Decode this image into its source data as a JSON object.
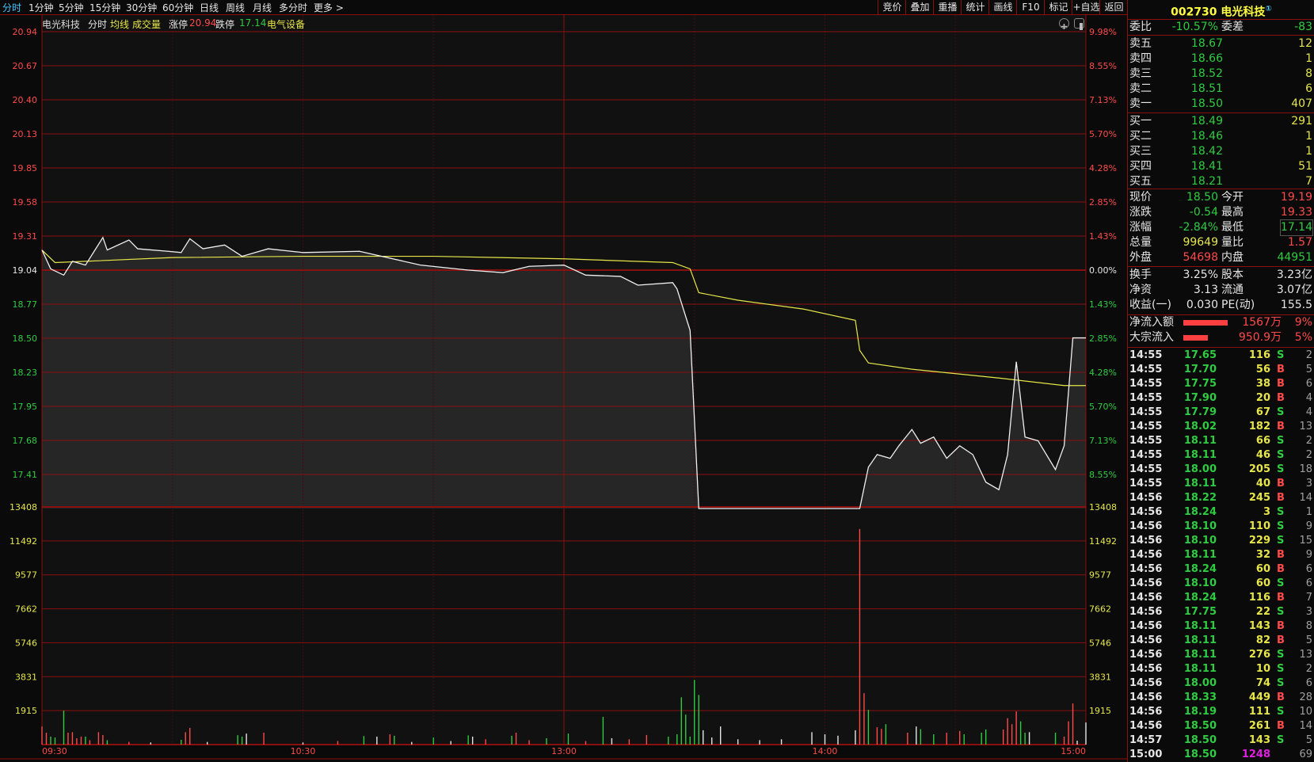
{
  "topbar": {
    "tabs": [
      "分时",
      "1分钟",
      "5分钟",
      "15分钟",
      "30分钟",
      "60分钟",
      "日线",
      "周线",
      "月线",
      "多分时",
      "更多 >"
    ],
    "active_tab": 0,
    "buttons": [
      "竞价",
      "叠加",
      "重播",
      "统计",
      "画线",
      "F10",
      "标记",
      "+自选",
      "返回"
    ]
  },
  "info_line": {
    "name": "电光科技",
    "mode": "分时",
    "avg_label": "均线",
    "vol_label": "成交量",
    "limit_up_label": "涨停",
    "limit_up": "20.94",
    "limit_down_label": "跌停",
    "limit_down": "17.14",
    "sector": "电气设备"
  },
  "chart_icons": [
    "zoom-in-icon",
    "panel-toggle-icon"
  ],
  "colors": {
    "up": "#ff4a4a",
    "down": "#2ecc40",
    "flat": "#e6e6e6",
    "avg": "#e6e64a",
    "grid": "#8a1010",
    "fill": "#262626"
  },
  "chart_data": {
    "type": "line",
    "prev_close": 19.04,
    "ylim": [
      17.14,
      20.94
    ],
    "price_ticks": [
      "20.94",
      "20.67",
      "20.40",
      "20.13",
      "19.85",
      "19.58",
      "19.31",
      "19.04",
      "18.77",
      "18.50",
      "18.23",
      "17.95",
      "17.68",
      "17.41"
    ],
    "pct_ticks": [
      "9.98%",
      "8.55%",
      "7.13%",
      "5.70%",
      "4.28%",
      "2.85%",
      "1.43%",
      "0.00%",
      "1.43%",
      "2.85%",
      "4.28%",
      "5.70%",
      "7.13%",
      "8.55%"
    ],
    "vol_ticks": [
      "13408",
      "11492",
      "9577",
      "7662",
      "5746",
      "3831",
      "1915"
    ],
    "vol_max": 13408,
    "time_labels": [
      "09:30",
      "10:30",
      "13:00",
      "14:00",
      "15:00"
    ],
    "price": [
      [
        "09:30",
        19.2
      ],
      [
        "09:32",
        19.05
      ],
      [
        "09:35",
        19.0
      ],
      [
        "09:37",
        19.11
      ],
      [
        "09:40",
        19.08
      ],
      [
        "09:42",
        19.19
      ],
      [
        "09:44",
        19.3
      ],
      [
        "09:45",
        19.2
      ],
      [
        "09:50",
        19.28
      ],
      [
        "09:52",
        19.21
      ],
      [
        "09:59",
        19.19
      ],
      [
        "10:02",
        19.18
      ],
      [
        "10:04",
        19.29
      ],
      [
        "10:07",
        19.21
      ],
      [
        "10:12",
        19.24
      ],
      [
        "10:16",
        19.15
      ],
      [
        "10:22",
        19.21
      ],
      [
        "10:30",
        19.18
      ],
      [
        "10:43",
        19.19
      ],
      [
        "10:57",
        19.08
      ],
      [
        "11:08",
        19.04
      ],
      [
        "11:16",
        19.02
      ],
      [
        "11:22",
        19.07
      ],
      [
        "13:00",
        19.08
      ],
      [
        "13:05",
        19.0
      ],
      [
        "13:13",
        18.99
      ],
      [
        "13:17",
        18.92
      ],
      [
        "13:25",
        18.94
      ],
      [
        "13:26",
        18.89
      ],
      [
        "13:29",
        18.56
      ],
      [
        "13:31",
        17.14
      ],
      [
        "14:08",
        17.14
      ],
      [
        "14:10",
        17.47
      ],
      [
        "14:12",
        17.57
      ],
      [
        "14:15",
        17.54
      ],
      [
        "14:17",
        17.64
      ],
      [
        "14:20",
        17.77
      ],
      [
        "14:22",
        17.66
      ],
      [
        "14:25",
        17.71
      ],
      [
        "14:28",
        17.54
      ],
      [
        "14:31",
        17.64
      ],
      [
        "14:34",
        17.57
      ],
      [
        "14:37",
        17.35
      ],
      [
        "14:40",
        17.29
      ],
      [
        "14:42",
        17.57
      ],
      [
        "14:44",
        18.31
      ],
      [
        "14:46",
        17.71
      ],
      [
        "14:49",
        17.68
      ],
      [
        "14:53",
        17.45
      ],
      [
        "14:55",
        17.64
      ],
      [
        "14:57",
        18.5
      ],
      [
        "15:00",
        18.5
      ]
    ],
    "avg": [
      [
        "09:30",
        19.2
      ],
      [
        "09:33",
        19.1
      ],
      [
        "09:40",
        19.11
      ],
      [
        "10:00",
        19.14
      ],
      [
        "10:30",
        19.15
      ],
      [
        "11:00",
        19.15
      ],
      [
        "13:00",
        19.13
      ],
      [
        "13:25",
        19.1
      ],
      [
        "13:29",
        19.05
      ],
      [
        "13:31",
        18.86
      ],
      [
        "13:40",
        18.8
      ],
      [
        "13:55",
        18.73
      ],
      [
        "14:07",
        18.64
      ],
      [
        "14:08",
        18.4
      ],
      [
        "14:10",
        18.3
      ],
      [
        "14:20",
        18.25
      ],
      [
        "14:40",
        18.18
      ],
      [
        "14:55",
        18.12
      ],
      [
        "15:00",
        18.12
      ]
    ],
    "volume": [
      [
        "09:30",
        1020,
        "up"
      ],
      [
        "09:31",
        670,
        "up"
      ],
      [
        "09:32",
        450,
        "down"
      ],
      [
        "09:33",
        400,
        "down"
      ],
      [
        "09:35",
        1915,
        "down"
      ],
      [
        "09:36",
        670,
        "up"
      ],
      [
        "09:37",
        700,
        "up"
      ],
      [
        "09:38",
        360,
        "up"
      ],
      [
        "09:39",
        450,
        "up"
      ],
      [
        "09:40",
        450,
        "down"
      ],
      [
        "09:41",
        250,
        "up"
      ],
      [
        "09:43",
        700,
        "up"
      ],
      [
        "09:44",
        540,
        "up"
      ],
      [
        "09:45",
        250,
        "down"
      ],
      [
        "09:50",
        150,
        "up"
      ],
      [
        "09:55",
        120,
        "flat"
      ],
      [
        "10:02",
        270,
        "down"
      ],
      [
        "10:03",
        700,
        "up"
      ],
      [
        "10:04",
        940,
        "up"
      ],
      [
        "10:08",
        150,
        "flat"
      ],
      [
        "10:15",
        530,
        "down"
      ],
      [
        "10:16",
        450,
        "down"
      ],
      [
        "10:17",
        620,
        "flat"
      ],
      [
        "10:21",
        670,
        "up"
      ],
      [
        "10:30",
        120,
        "flat"
      ],
      [
        "10:38",
        200,
        "up"
      ],
      [
        "10:44",
        480,
        "down"
      ],
      [
        "10:47",
        450,
        "flat"
      ],
      [
        "10:50",
        580,
        "up"
      ],
      [
        "10:51",
        500,
        "down"
      ],
      [
        "10:55",
        150,
        "flat"
      ],
      [
        "11:00",
        400,
        "down"
      ],
      [
        "11:04",
        200,
        "flat"
      ],
      [
        "11:08",
        520,
        "down"
      ],
      [
        "11:09",
        450,
        "flat"
      ],
      [
        "11:12",
        300,
        "up"
      ],
      [
        "11:18",
        500,
        "down"
      ],
      [
        "11:19",
        670,
        "up"
      ],
      [
        "11:22",
        250,
        "up"
      ],
      [
        "11:26",
        360,
        "down"
      ],
      [
        "13:01",
        620,
        "down"
      ],
      [
        "13:05",
        200,
        "up"
      ],
      [
        "13:09",
        1560,
        "down"
      ],
      [
        "13:11",
        360,
        "flat"
      ],
      [
        "13:15",
        300,
        "up"
      ],
      [
        "13:19",
        540,
        "up"
      ],
      [
        "13:24",
        450,
        "down"
      ],
      [
        "13:26",
        580,
        "down"
      ],
      [
        "13:27",
        2670,
        "down"
      ],
      [
        "13:28",
        1690,
        "down"
      ],
      [
        "13:29",
        450,
        "down"
      ],
      [
        "13:30",
        3650,
        "down"
      ],
      [
        "13:31",
        2800,
        "down"
      ],
      [
        "13:32",
        810,
        "flat"
      ],
      [
        "13:34",
        400,
        "flat"
      ],
      [
        "13:36",
        1020,
        "flat"
      ],
      [
        "13:40",
        300,
        "flat"
      ],
      [
        "13:45",
        250,
        "flat"
      ],
      [
        "13:50",
        300,
        "flat"
      ],
      [
        "13:57",
        700,
        "flat"
      ],
      [
        "14:00",
        580,
        "flat"
      ],
      [
        "14:03",
        500,
        "flat"
      ],
      [
        "14:07",
        810,
        "flat"
      ],
      [
        "14:08",
        12160,
        "up"
      ],
      [
        "14:09",
        2900,
        "up"
      ],
      [
        "14:10",
        1960,
        "down"
      ],
      [
        "14:12",
        980,
        "up"
      ],
      [
        "14:13",
        890,
        "up"
      ],
      [
        "14:14",
        1150,
        "down"
      ],
      [
        "14:19",
        670,
        "up"
      ],
      [
        "14:21",
        1020,
        "flat"
      ],
      [
        "14:22",
        870,
        "down"
      ],
      [
        "14:25",
        580,
        "down"
      ],
      [
        "14:28",
        670,
        "up"
      ],
      [
        "14:31",
        770,
        "up"
      ],
      [
        "14:32",
        580,
        "down"
      ],
      [
        "14:36",
        670,
        "down"
      ],
      [
        "14:37",
        850,
        "down"
      ],
      [
        "14:41",
        850,
        "up"
      ],
      [
        "14:42",
        1490,
        "up"
      ],
      [
        "14:43",
        1150,
        "up"
      ],
      [
        "14:44",
        1870,
        "up"
      ],
      [
        "14:45",
        1310,
        "down"
      ],
      [
        "14:46",
        670,
        "down"
      ],
      [
        "14:47",
        700,
        "flat"
      ],
      [
        "14:53",
        670,
        "down"
      ],
      [
        "14:55",
        450,
        "up"
      ],
      [
        "14:56",
        1310,
        "up"
      ],
      [
        "14:57",
        2320,
        "up"
      ],
      [
        "14:58",
        220,
        "flat"
      ],
      [
        "15:00",
        1248,
        "flat"
      ]
    ]
  },
  "quote": {
    "code": "002730",
    "name": "电光科技",
    "badge": "①",
    "weibi_label": "委比",
    "weibi": "-10.57%",
    "weicha_label": "委差",
    "weicha": "-83",
    "asks": [
      {
        "label": "卖五",
        "price": "18.67",
        "vol": "12"
      },
      {
        "label": "卖四",
        "price": "18.66",
        "vol": "1"
      },
      {
        "label": "卖三",
        "price": "18.52",
        "vol": "8"
      },
      {
        "label": "卖二",
        "price": "18.51",
        "vol": "6"
      },
      {
        "label": "卖一",
        "price": "18.50",
        "vol": "407"
      }
    ],
    "bids": [
      {
        "label": "买一",
        "price": "18.49",
        "vol": "291"
      },
      {
        "label": "买二",
        "price": "18.46",
        "vol": "1"
      },
      {
        "label": "买三",
        "price": "18.42",
        "vol": "1"
      },
      {
        "label": "买四",
        "price": "18.41",
        "vol": "51"
      },
      {
        "label": "买五",
        "price": "18.21",
        "vol": "7"
      }
    ],
    "stats": [
      {
        "l1": "现价",
        "v1": "18.50",
        "c1": "green",
        "l2": "今开",
        "v2": "19.19",
        "c2": "red"
      },
      {
        "l1": "涨跌",
        "v1": "-0.54",
        "c1": "green",
        "l2": "最高",
        "v2": "19.33",
        "c2": "red"
      },
      {
        "l1": "涨幅",
        "v1": "-2.84%",
        "c1": "green",
        "l2": "最低",
        "v2": "17.14",
        "c2": "green"
      },
      {
        "l1": "总量",
        "v1": "99649",
        "c1": "yellow",
        "l2": "量比",
        "v2": "1.57",
        "c2": "red"
      },
      {
        "l1": "外盘",
        "v1": "54698",
        "c1": "red",
        "l2": "内盘",
        "v2": "44951",
        "c2": "green"
      }
    ],
    "fundamentals": [
      {
        "l1": "换手",
        "v1": "3.25%",
        "l2": "股本",
        "v2": "3.23亿"
      },
      {
        "l1": "净资",
        "v1": "3.13",
        "l2": "流通",
        "v2": "3.07亿"
      },
      {
        "l1": "收益(一)",
        "v1": "0.030",
        "l2": "PE(动)",
        "v2": "155.5"
      }
    ],
    "flows": [
      {
        "label": "净流入额",
        "value": "1567万",
        "pct": "9%",
        "level": 0.9
      },
      {
        "label": "大宗流入",
        "value": "950.9万",
        "pct": "5%",
        "level": 0.5
      }
    ]
  },
  "ticks": [
    [
      "14:55",
      "17.65",
      "116",
      "S",
      "2"
    ],
    [
      "14:55",
      "17.70",
      "56",
      "B",
      "5"
    ],
    [
      "14:55",
      "17.75",
      "38",
      "B",
      "6"
    ],
    [
      "14:55",
      "17.90",
      "20",
      "B",
      "4"
    ],
    [
      "14:55",
      "17.79",
      "67",
      "S",
      "4"
    ],
    [
      "14:55",
      "18.02",
      "182",
      "B",
      "13"
    ],
    [
      "14:55",
      "18.11",
      "66",
      "S",
      "2"
    ],
    [
      "14:55",
      "18.11",
      "46",
      "S",
      "2"
    ],
    [
      "14:55",
      "18.00",
      "205",
      "S",
      "18"
    ],
    [
      "14:55",
      "18.11",
      "40",
      "B",
      "3"
    ],
    [
      "14:56",
      "18.22",
      "245",
      "B",
      "14"
    ],
    [
      "14:56",
      "18.24",
      "3",
      "S",
      "1"
    ],
    [
      "14:56",
      "18.10",
      "110",
      "S",
      "9"
    ],
    [
      "14:56",
      "18.10",
      "229",
      "S",
      "15"
    ],
    [
      "14:56",
      "18.11",
      "32",
      "B",
      "9"
    ],
    [
      "14:56",
      "18.24",
      "60",
      "B",
      "6"
    ],
    [
      "14:56",
      "18.10",
      "60",
      "S",
      "6"
    ],
    [
      "14:56",
      "18.24",
      "116",
      "B",
      "7"
    ],
    [
      "14:56",
      "17.75",
      "22",
      "S",
      "3"
    ],
    [
      "14:56",
      "18.11",
      "143",
      "B",
      "8"
    ],
    [
      "14:56",
      "18.11",
      "82",
      "B",
      "5"
    ],
    [
      "14:56",
      "18.11",
      "276",
      "S",
      "13"
    ],
    [
      "14:56",
      "18.11",
      "10",
      "S",
      "2"
    ],
    [
      "14:56",
      "18.00",
      "74",
      "S",
      "6"
    ],
    [
      "14:56",
      "18.33",
      "449",
      "B",
      "28"
    ],
    [
      "14:56",
      "18.19",
      "111",
      "S",
      "10"
    ],
    [
      "14:56",
      "18.50",
      "261",
      "B",
      "14"
    ],
    [
      "14:57",
      "18.50",
      "143",
      "S",
      "5"
    ],
    [
      "15:00",
      "18.50",
      "1248",
      "",
      "69"
    ]
  ]
}
